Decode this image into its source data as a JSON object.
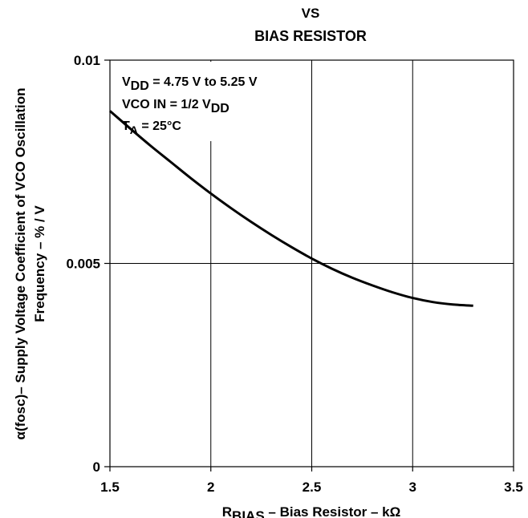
{
  "chart_data": {
    "type": "line",
    "title_lines": [
      "VS",
      "BIAS RESISTOR"
    ],
    "xlabel": {
      "main": "R",
      "sub": "BIAS",
      "rest": " – Bias Resistor – kΩ"
    },
    "ylabel": {
      "line1": "α(fosc)– Supply Voltage Coefficient of VCO Oscillation",
      "line2": "Frequency – % / V"
    },
    "xlim": [
      1.5,
      3.5
    ],
    "ylim": [
      0,
      0.01
    ],
    "x_ticks": [
      1.5,
      2,
      2.5,
      3,
      3.5
    ],
    "x_tick_labels": [
      "1.5",
      "2",
      "2.5",
      "3",
      "3.5"
    ],
    "y_ticks": [
      0,
      0.005,
      0.01
    ],
    "y_tick_labels": [
      "0",
      "0.005",
      "0.01"
    ],
    "grid": true,
    "annotation": [
      {
        "main": "V",
        "sub": "DD",
        "rest": " = 4.75 V to 5.25 V"
      },
      {
        "main": "VCO IN = 1/2 V",
        "sub": "DD",
        "rest": ""
      },
      {
        "main": "T",
        "sub": "A",
        "rest": " = 25°C"
      }
    ],
    "series": [
      {
        "x": [
          1.5,
          1.6,
          1.7,
          1.8,
          1.9,
          2.0,
          2.1,
          2.2,
          2.3,
          2.4,
          2.5,
          2.6,
          2.7,
          2.8,
          2.9,
          3.0,
          3.1,
          3.2,
          3.3
        ],
        "y": [
          0.00875,
          0.00832,
          0.0079,
          0.0075,
          0.0071,
          0.00672,
          0.00636,
          0.00602,
          0.0057,
          0.0054,
          0.00512,
          0.00487,
          0.00465,
          0.00446,
          0.00429,
          0.00415,
          0.00405,
          0.00399,
          0.00396
        ]
      }
    ]
  }
}
